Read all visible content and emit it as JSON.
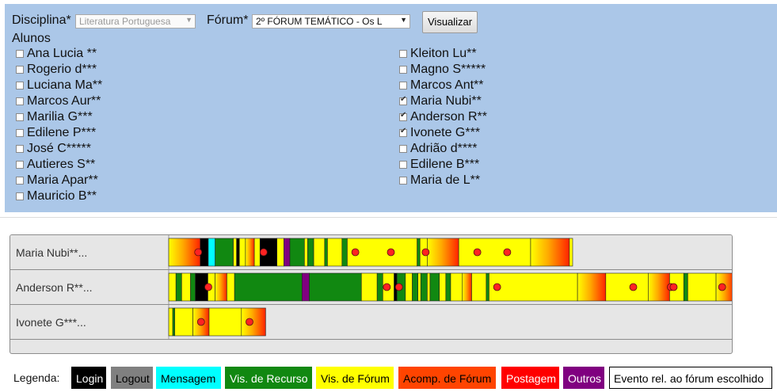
{
  "filters": {
    "disciplina_label": "Disciplina*",
    "disciplina_value": "Literatura Portuguesa",
    "forum_label": "Fórum*",
    "forum_value": "2º FÓRUM TEMÁTICO - Os L",
    "visualizar_label": "Visualizar",
    "alunos_label": "Alunos"
  },
  "students_left": [
    {
      "name": "Ana Lucia **",
      "checked": false
    },
    {
      "name": "Rogerio d***",
      "checked": false
    },
    {
      "name": "Luciana Ma**",
      "checked": false
    },
    {
      "name": "Marcos Aur**",
      "checked": false
    },
    {
      "name": "Marilia G***",
      "checked": false
    },
    {
      "name": "Edilene P***",
      "checked": false
    },
    {
      "name": "José C*****",
      "checked": false
    },
    {
      "name": "Autieres S**",
      "checked": false
    },
    {
      "name": "Maria Apar**",
      "checked": false
    },
    {
      "name": "Mauricio B**",
      "checked": false
    }
  ],
  "students_right": [
    {
      "name": "Kleiton Lu**",
      "checked": false
    },
    {
      "name": "Magno S*****",
      "checked": false
    },
    {
      "name": "Marcos Ant**",
      "checked": false
    },
    {
      "name": "Maria Nubi**",
      "checked": true
    },
    {
      "name": "Anderson R**",
      "checked": true
    },
    {
      "name": "Ivonete G***",
      "checked": true
    },
    {
      "name": "Adrião d****",
      "checked": false
    },
    {
      "name": "Edilene B***",
      "checked": false
    },
    {
      "name": "Maria de L**",
      "checked": false
    }
  ],
  "colors": {
    "Login": "#000000",
    "Logout": "#808080",
    "Mensagem": "#00ffff",
    "Recurso": "#118811",
    "Forum": "#ffff00",
    "Acomp": "#ff4400",
    "Postagem": "#ff0000",
    "Outros": "#800080"
  },
  "chart_data": {
    "type": "timeline",
    "rows": [
      {
        "label": "Maria Nubi**...",
        "segments": [
          {
            "s": 0.0,
            "e": 7.8,
            "t": "Acomp"
          },
          {
            "s": 7.8,
            "e": 9.8,
            "t": "Login"
          },
          {
            "s": 9.8,
            "e": 11.5,
            "t": "Mensagem"
          },
          {
            "s": 11.5,
            "e": 16.0,
            "t": "Recurso"
          },
          {
            "s": 16.0,
            "e": 16.8,
            "t": "Forum"
          },
          {
            "s": 16.8,
            "e": 17.5,
            "t": "Login"
          },
          {
            "s": 17.5,
            "e": 19.0,
            "t": "Forum"
          },
          {
            "s": 19.0,
            "e": 21.2,
            "t": "Acomp"
          },
          {
            "s": 21.2,
            "e": 22.6,
            "t": "Forum"
          },
          {
            "s": 22.6,
            "e": 26.8,
            "t": "Login"
          },
          {
            "s": 26.8,
            "e": 28.5,
            "t": "Forum"
          },
          {
            "s": 28.5,
            "e": 30.0,
            "t": "Outros"
          },
          {
            "s": 30.0,
            "e": 33.6,
            "t": "Recurso"
          },
          {
            "s": 33.6,
            "e": 34.4,
            "t": "Forum"
          },
          {
            "s": 34.4,
            "e": 35.9,
            "t": "Recurso"
          },
          {
            "s": 35.9,
            "e": 38.6,
            "t": "Forum"
          },
          {
            "s": 38.6,
            "e": 39.3,
            "t": "Recurso"
          },
          {
            "s": 39.3,
            "e": 42.9,
            "t": "Forum"
          },
          {
            "s": 42.9,
            "e": 44.2,
            "t": "Recurso"
          },
          {
            "s": 44.2,
            "e": 61.5,
            "t": "Forum"
          },
          {
            "s": 61.5,
            "e": 62.2,
            "t": "Recurso"
          },
          {
            "s": 62.2,
            "e": 64.0,
            "t": "Forum"
          },
          {
            "s": 64.0,
            "e": 71.8,
            "t": "Acomp"
          },
          {
            "s": 71.8,
            "e": 89.6,
            "t": "Forum"
          },
          {
            "s": 89.6,
            "e": 99.2,
            "t": "Acomp"
          },
          {
            "s": 99.2,
            "e": 100.0,
            "t": "Forum"
          }
        ],
        "posts": [
          7.3,
          23.5,
          46.2,
          55.0,
          63.6,
          76.4,
          83.8
        ]
      },
      {
        "label": "Anderson R**...",
        "segments": [
          {
            "s": 0.0,
            "e": 1.8,
            "t": "Forum"
          },
          {
            "s": 1.8,
            "e": 3.2,
            "t": "Recurso"
          },
          {
            "s": 3.2,
            "e": 5.4,
            "t": "Forum"
          },
          {
            "s": 5.4,
            "e": 6.6,
            "t": "Recurso"
          },
          {
            "s": 6.6,
            "e": 9.7,
            "t": "Login"
          },
          {
            "s": 9.7,
            "e": 11.5,
            "t": "Forum"
          },
          {
            "s": 11.5,
            "e": 14.4,
            "t": "Acomp"
          },
          {
            "s": 14.4,
            "e": 16.3,
            "t": "Forum"
          },
          {
            "s": 16.3,
            "e": 33.0,
            "t": "Recurso"
          },
          {
            "s": 33.0,
            "e": 34.8,
            "t": "Outros"
          },
          {
            "s": 34.8,
            "e": 47.7,
            "t": "Recurso"
          },
          {
            "s": 47.7,
            "e": 51.6,
            "t": "Forum"
          },
          {
            "s": 51.6,
            "e": 53.0,
            "t": "Recurso"
          },
          {
            "s": 53.0,
            "e": 55.8,
            "t": "Forum"
          },
          {
            "s": 55.8,
            "e": 56.5,
            "t": "Login"
          },
          {
            "s": 56.5,
            "e": 58.6,
            "t": "Recurso"
          },
          {
            "s": 58.6,
            "e": 60.3,
            "t": "Forum"
          },
          {
            "s": 60.3,
            "e": 61.7,
            "t": "Recurso"
          },
          {
            "s": 61.7,
            "e": 62.4,
            "t": "Forum"
          },
          {
            "s": 62.4,
            "e": 64.0,
            "t": "Recurso"
          },
          {
            "s": 64.0,
            "e": 64.7,
            "t": "Forum"
          },
          {
            "s": 64.7,
            "e": 67.0,
            "t": "Recurso"
          },
          {
            "s": 67.0,
            "e": 68.6,
            "t": "Forum"
          },
          {
            "s": 68.6,
            "e": 69.8,
            "t": "Recurso"
          },
          {
            "s": 69.8,
            "e": 72.7,
            "t": "Forum"
          },
          {
            "s": 72.7,
            "e": 75.0,
            "t": "Acomp"
          },
          {
            "s": 75.0,
            "e": 78.6,
            "t": "Forum"
          },
          {
            "s": 78.6,
            "e": 79.3,
            "t": "Recurso"
          },
          {
            "s": 79.3,
            "e": 101.2,
            "t": "Forum"
          },
          {
            "s": 101.2,
            "e": 108.2,
            "t": "Acomp"
          },
          {
            "s": 108.2,
            "e": 118.7,
            "t": "Forum"
          },
          {
            "s": 118.7,
            "e": 124.0,
            "t": "Acomp"
          },
          {
            "s": 124.0,
            "e": 127.5,
            "t": "Forum"
          },
          {
            "s": 127.5,
            "e": 128.5,
            "t": "Recurso"
          },
          {
            "s": 128.5,
            "e": 135.5,
            "t": "Forum"
          },
          {
            "s": 135.5,
            "e": 140.0,
            "t": "Acomp"
          }
        ],
        "posts": [
          9.8,
          54.0,
          57.0,
          81.3,
          115.0,
          124.3,
          125.0,
          137.0
        ]
      },
      {
        "label": "Ivonete G***...",
        "segments": [
          {
            "s": 0.0,
            "e": 1.0,
            "t": "Forum"
          },
          {
            "s": 1.0,
            "e": 1.5,
            "t": "Recurso"
          },
          {
            "s": 1.5,
            "e": 6.0,
            "t": "Forum"
          },
          {
            "s": 6.0,
            "e": 10.0,
            "t": "Acomp"
          },
          {
            "s": 10.0,
            "e": 18.0,
            "t": "Forum"
          },
          {
            "s": 18.0,
            "e": 24.0,
            "t": "Acomp"
          }
        ],
        "posts": [
          8.0,
          20.0
        ]
      }
    ]
  },
  "legend": {
    "title": "Legenda:",
    "items": [
      {
        "label": "Login",
        "bg": "#000000",
        "fg": "#ffffff",
        "border": "#000000"
      },
      {
        "label": "Logout",
        "bg": "#808080",
        "fg": "#000000",
        "border": "#808080"
      },
      {
        "label": "Mensagem",
        "bg": "#00ffff",
        "fg": "#000000",
        "border": "#00ffff"
      },
      {
        "label": "Vis. de Recurso",
        "bg": "#118811",
        "fg": "#ffffff",
        "border": "#118811"
      },
      {
        "label": "Vis. de Fórum",
        "bg": "#ffff00",
        "fg": "#000000",
        "border": "#ffff00"
      },
      {
        "label": "Acomp. de Fórum",
        "bg": "#ff4400",
        "fg": "#000000",
        "border": "#ff4400"
      },
      {
        "label": "Postagem",
        "bg": "#ff0000",
        "fg": "#ffffff",
        "border": "#ff0000"
      },
      {
        "label": "Outros",
        "bg": "#800080",
        "fg": "#ffffff",
        "border": "#800080"
      },
      {
        "label": "Evento rel. ao fórum escolhido",
        "bg": "#ffffff",
        "fg": "#000000",
        "border": "#000000"
      }
    ]
  }
}
